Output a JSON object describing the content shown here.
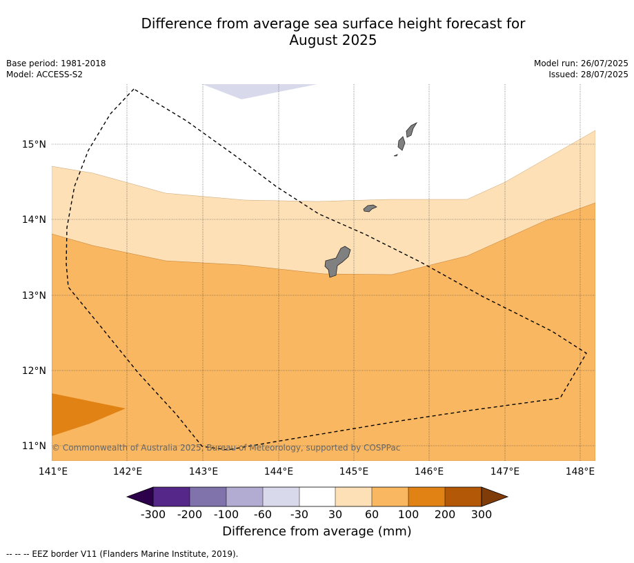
{
  "title_line1": "Difference from average sea surface height forecast for",
  "title_line2": "August 2025",
  "meta_left": [
    "Base period: 1981-2018",
    "Model: ACCESS-S2"
  ],
  "meta_right": [
    "Model run: 26/07/2025",
    "Issued: 28/07/2025"
  ],
  "map": {
    "lon_ticks": [
      "141°E",
      "142°E",
      "143°E",
      "144°E",
      "145°E",
      "146°E",
      "147°E",
      "148°E"
    ],
    "lat_ticks": [
      "15°N",
      "14°N",
      "13°N",
      "12°N",
      "11°N"
    ],
    "copyright": "© Commonwealth of Australia 2025, Bureau of Meteorology, supported by COSPPac",
    "colors": {
      "land": "#808080",
      "band_30_60": "#fde0b6",
      "band_60_100": "#f9b762",
      "band_100_200": "#e08314",
      "band_neg60_neg30": "#d8daeb"
    }
  },
  "colorbar": {
    "title": "Difference from average (mm)",
    "tick_labels": [
      "-300",
      "-200",
      "-100",
      "-60",
      "-30",
      "30",
      "60",
      "100",
      "200",
      "300"
    ],
    "colors": [
      "#542788",
      "#8073ac",
      "#b2abd2",
      "#d8daeb",
      "#ffffff",
      "#fde0b6",
      "#f9b762",
      "#e08314",
      "#b35806"
    ],
    "under_color": "#2d004b",
    "over_color": "#7f3b08"
  },
  "eez_note": "--  --  -- EEZ border V11 (Flanders Marine Institute, 2019)."
}
